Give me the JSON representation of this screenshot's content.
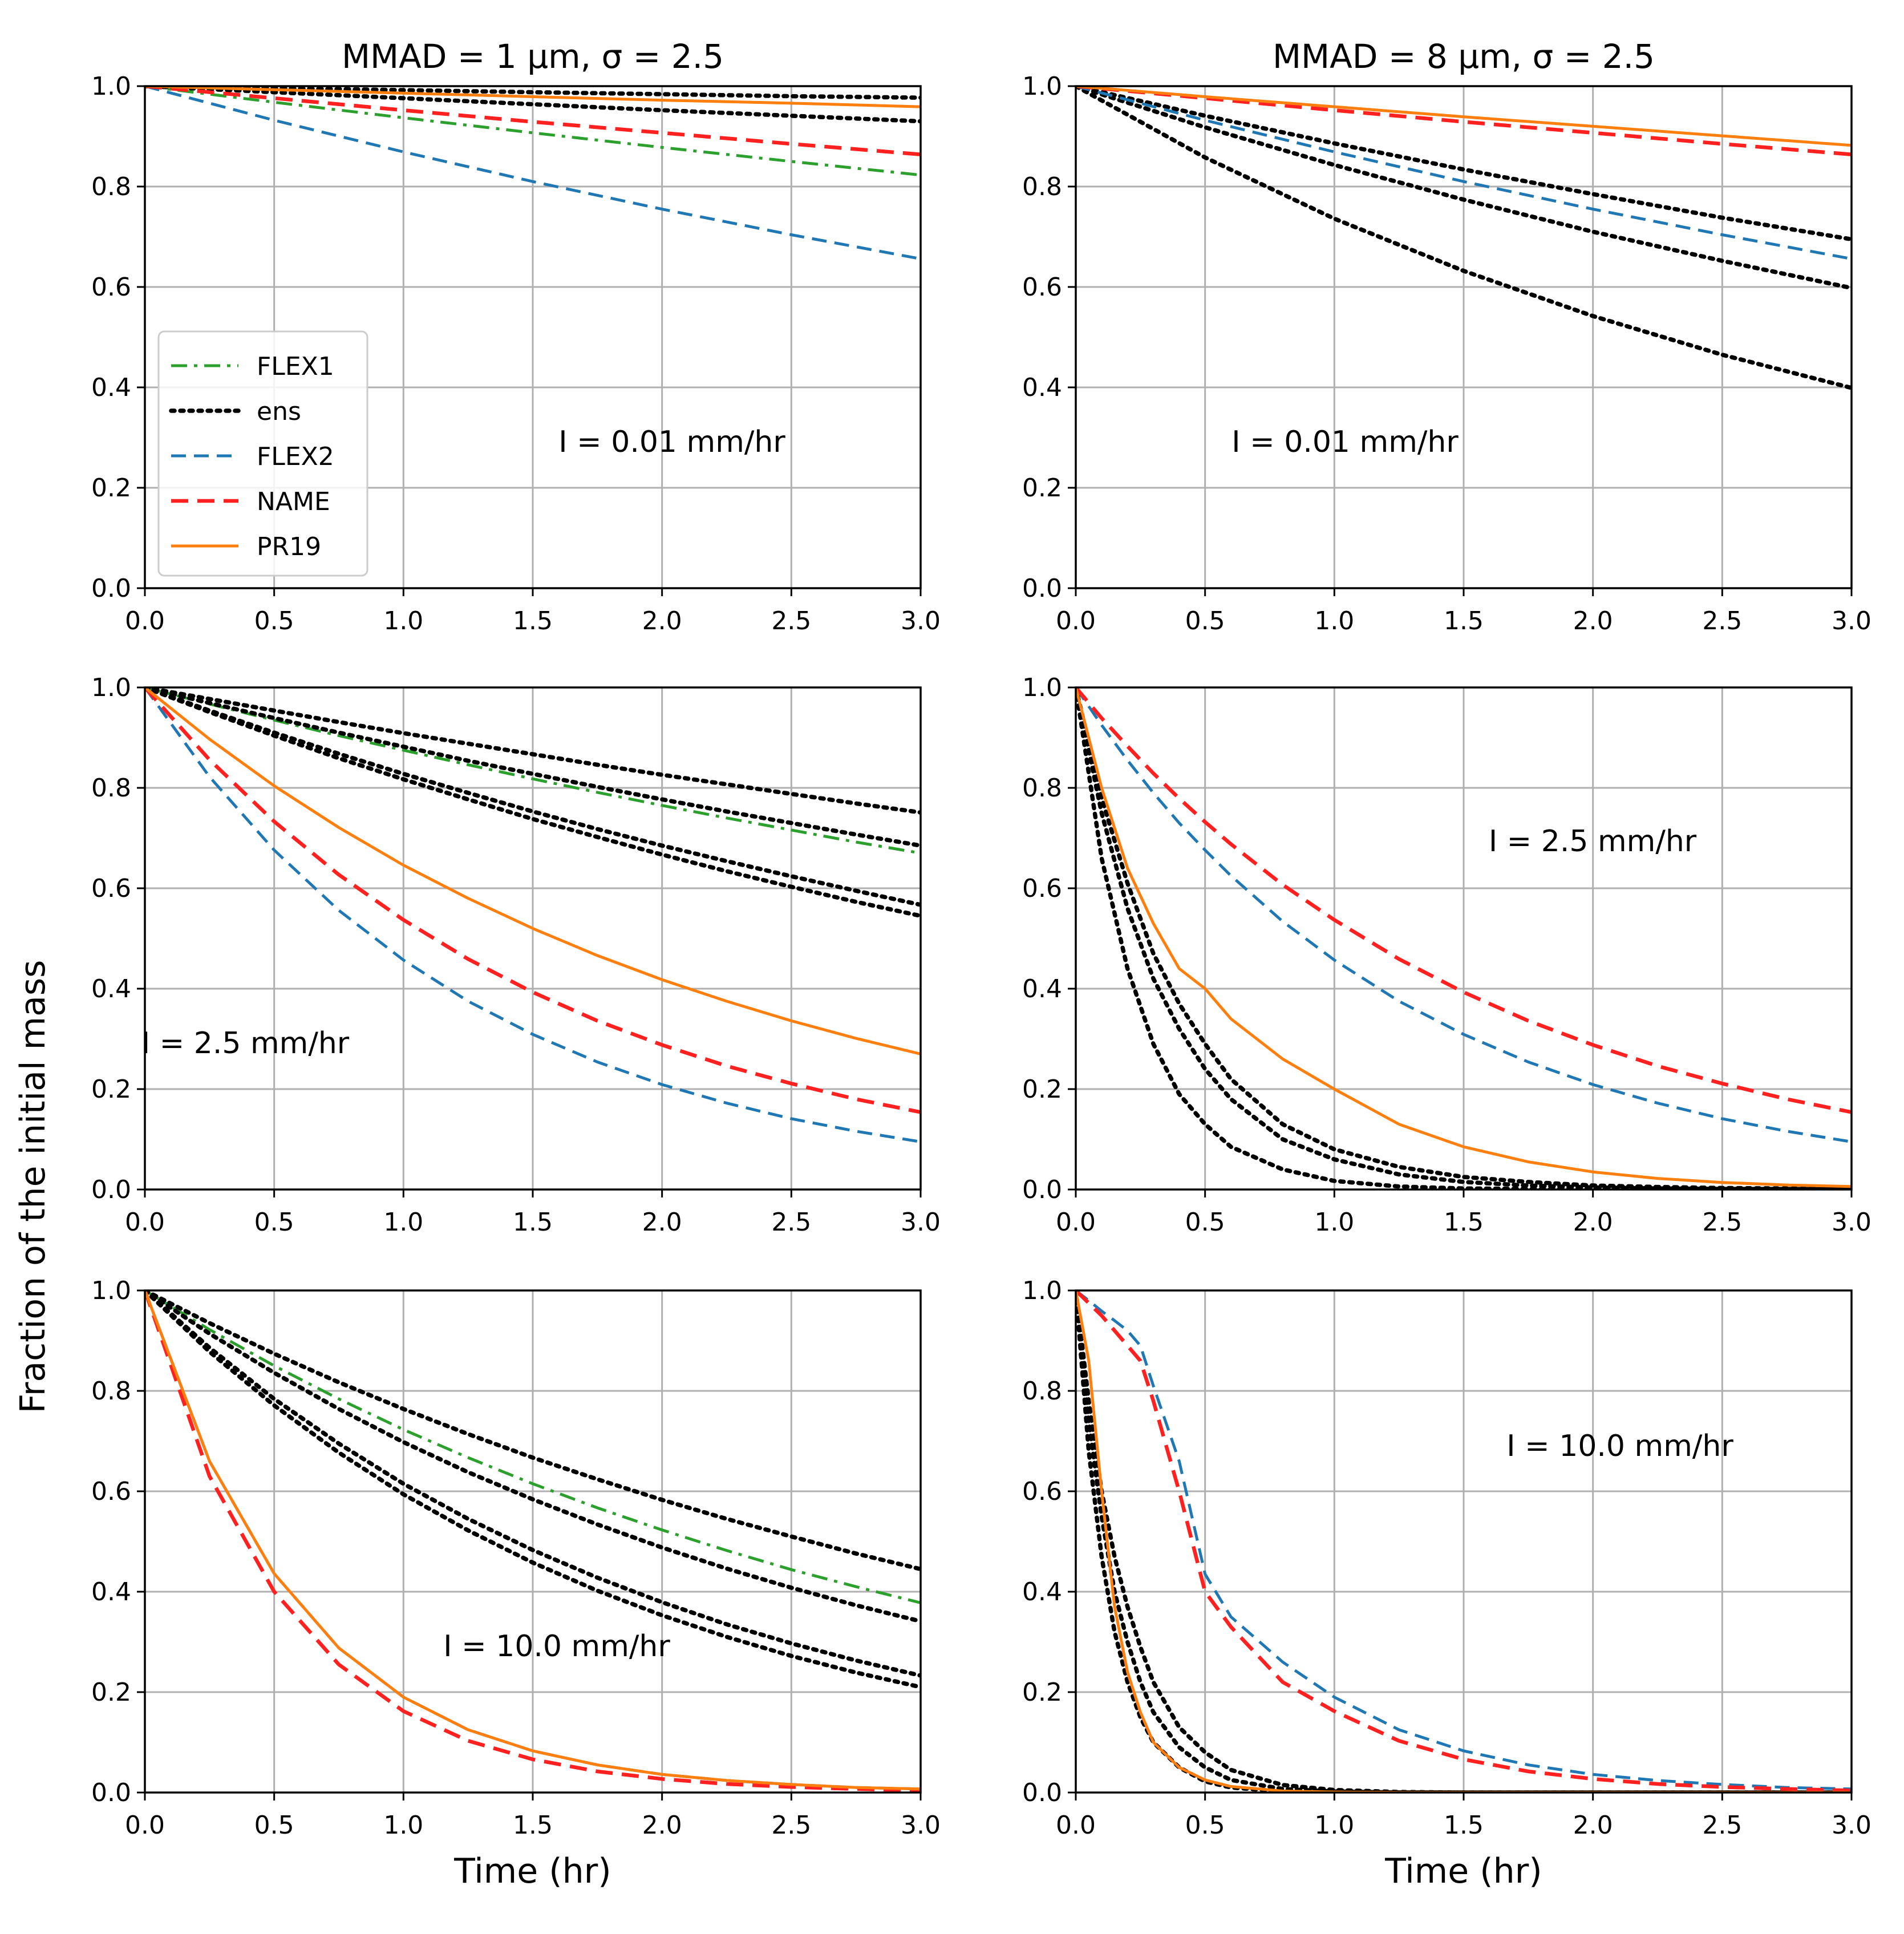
{
  "figure": {
    "ylabel": "Fraction of the initial mass",
    "xlabel": "Time (hr)",
    "column_titles": [
      "MMAD = 1 μm, σ = 2.5",
      "MMAD = 8 μm, σ = 2.5"
    ]
  },
  "styles": {
    "FLEX1": {
      "color": "#2ca02c",
      "dash": "dashdot"
    },
    "ens": {
      "color": "#000000",
      "dash": "dotted"
    },
    "FLEX2": {
      "color": "#1f77b4",
      "dash": "dashed"
    },
    "NAME": {
      "color": "#ff2020",
      "dash": "dashed-thick"
    },
    "PR19": {
      "color": "#ff7f0e",
      "dash": "solid"
    }
  },
  "legend": {
    "location": "center-left",
    "entries": [
      "FLEX1",
      "ens",
      "FLEX2",
      "NAME",
      "PR19"
    ]
  },
  "chart_data": [
    {
      "type": "line",
      "row": 0,
      "col": 0,
      "title": "MMAD = 1 μm, σ = 2.5",
      "annotation": "I = 0.01 mm/hr",
      "xlim": [
        0,
        3
      ],
      "ylim": [
        0,
        1
      ],
      "xticks": [
        "0.0",
        "0.5",
        "1.0",
        "1.5",
        "2.0",
        "2.5",
        "3.0"
      ],
      "yticks": [
        "0.0",
        "0.2",
        "0.4",
        "0.6",
        "0.8",
        "1.0"
      ],
      "grid": true,
      "xlabel": "",
      "ylabel": "",
      "x": [
        0,
        0.5,
        1,
        1.5,
        2,
        2.5,
        3
      ],
      "series": [
        {
          "name": "FLEX1",
          "values": [
            1,
            0.968,
            0.937,
            0.907,
            0.878,
            0.85,
            0.823
          ]
        },
        {
          "name": "ens",
          "values": [
            1,
            0.996,
            0.992,
            0.988,
            0.984,
            0.98,
            0.977
          ]
        },
        {
          "name": "ens",
          "values": [
            1,
            0.988,
            0.976,
            0.964,
            0.952,
            0.941,
            0.93
          ]
        },
        {
          "name": "FLEX2",
          "values": [
            1,
            0.932,
            0.869,
            0.81,
            0.755,
            0.704,
            0.656
          ]
        },
        {
          "name": "NAME",
          "values": [
            1,
            0.976,
            0.952,
            0.929,
            0.907,
            0.885,
            0.864
          ]
        },
        {
          "name": "PR19",
          "values": [
            1,
            0.993,
            0.986,
            0.979,
            0.972,
            0.966,
            0.959
          ]
        }
      ]
    },
    {
      "type": "line",
      "row": 0,
      "col": 1,
      "title": "MMAD = 8 μm, σ = 2.5",
      "annotation": "I = 0.01 mm/hr",
      "xlim": [
        0,
        3
      ],
      "ylim": [
        0,
        1
      ],
      "xticks": [
        "0.0",
        "0.5",
        "1.0",
        "1.5",
        "2.0",
        "2.5",
        "3.0"
      ],
      "yticks": [
        "0.0",
        "0.2",
        "0.4",
        "0.6",
        "0.8",
        "1.0"
      ],
      "grid": true,
      "xlabel": "",
      "ylabel": "",
      "x": [
        0,
        0.5,
        1,
        1.5,
        2,
        2.5,
        3
      ],
      "series": [
        {
          "name": "ens",
          "values": [
            1,
            0.941,
            0.886,
            0.834,
            0.785,
            0.738,
            0.695
          ]
        },
        {
          "name": "ens",
          "values": [
            1,
            0.918,
            0.843,
            0.774,
            0.71,
            0.652,
            0.598
          ]
        },
        {
          "name": "ens",
          "values": [
            1,
            0.858,
            0.736,
            0.632,
            0.542,
            0.465,
            0.399
          ]
        },
        {
          "name": "FLEX2",
          "values": [
            1,
            0.932,
            0.869,
            0.81,
            0.755,
            0.704,
            0.656
          ]
        },
        {
          "name": "NAME",
          "values": [
            1,
            0.976,
            0.952,
            0.929,
            0.907,
            0.885,
            0.864
          ]
        },
        {
          "name": "PR19",
          "values": [
            1,
            0.979,
            0.959,
            0.939,
            0.92,
            0.901,
            0.882
          ]
        }
      ]
    },
    {
      "type": "line",
      "row": 1,
      "col": 0,
      "title": "",
      "annotation": "I = 2.5 mm/hr",
      "xlim": [
        0,
        3
      ],
      "ylim": [
        0,
        1
      ],
      "xticks": [
        "0.0",
        "0.5",
        "1.0",
        "1.5",
        "2.0",
        "2.5",
        "3.0"
      ],
      "yticks": [
        "0.0",
        "0.2",
        "0.4",
        "0.6",
        "0.8",
        "1.0"
      ],
      "grid": true,
      "xlabel": "",
      "ylabel": "Fraction of the initial mass",
      "x": [
        0,
        0.25,
        0.5,
        0.75,
        1,
        1.25,
        1.5,
        1.75,
        2,
        2.25,
        2.5,
        2.75,
        3
      ],
      "series": [
        {
          "name": "FLEX1",
          "values": [
            1,
            0.967,
            0.935,
            0.904,
            0.875,
            0.846,
            0.818,
            0.791,
            0.765,
            0.74,
            0.716,
            0.692,
            0.67
          ]
        },
        {
          "name": "ens",
          "values": [
            1,
            0.977,
            0.954,
            0.931,
            0.909,
            0.888,
            0.867,
            0.846,
            0.826,
            0.807,
            0.788,
            0.769,
            0.751
          ]
        },
        {
          "name": "ens",
          "values": [
            1,
            0.969,
            0.939,
            0.91,
            0.882,
            0.854,
            0.828,
            0.802,
            0.777,
            0.753,
            0.73,
            0.707,
            0.685
          ]
        },
        {
          "name": "ens",
          "values": [
            1,
            0.954,
            0.91,
            0.868,
            0.828,
            0.79,
            0.753,
            0.718,
            0.685,
            0.654,
            0.624,
            0.595,
            0.567
          ]
        },
        {
          "name": "ens",
          "values": [
            1,
            0.951,
            0.904,
            0.859,
            0.817,
            0.777,
            0.738,
            0.702,
            0.667,
            0.634,
            0.603,
            0.573,
            0.545
          ]
        },
        {
          "name": "FLEX2",
          "values": [
            1,
            0.822,
            0.676,
            0.556,
            0.457,
            0.375,
            0.309,
            0.254,
            0.209,
            0.172,
            0.141,
            0.116,
            0.095
          ]
        },
        {
          "name": "NAME",
          "values": [
            1,
            0.856,
            0.733,
            0.627,
            0.537,
            0.459,
            0.393,
            0.336,
            0.288,
            0.246,
            0.211,
            0.18,
            0.154
          ]
        },
        {
          "name": "PR19",
          "values": [
            1,
            0.897,
            0.804,
            0.721,
            0.646,
            0.58,
            0.52,
            0.466,
            0.418,
            0.375,
            0.336,
            0.301,
            0.27
          ]
        }
      ]
    },
    {
      "type": "line",
      "row": 1,
      "col": 1,
      "title": "",
      "annotation": "I = 2.5 mm/hr",
      "xlim": [
        0,
        3
      ],
      "ylim": [
        0,
        1
      ],
      "xticks": [
        "0.0",
        "0.5",
        "1.0",
        "1.5",
        "2.0",
        "2.5",
        "3.0"
      ],
      "yticks": [
        "0.0",
        "0.2",
        "0.4",
        "0.6",
        "0.8",
        "1.0"
      ],
      "grid": true,
      "xlabel": "",
      "ylabel": "",
      "x": [
        0,
        0.1,
        0.2,
        0.3,
        0.4,
        0.5,
        0.6,
        0.8,
        1,
        1.25,
        1.5,
        1.75,
        2,
        2.25,
        2.5,
        2.75,
        3
      ],
      "series": [
        {
          "name": "ens",
          "values": [
            1,
            0.78,
            0.61,
            0.47,
            0.37,
            0.29,
            0.22,
            0.13,
            0.08,
            0.045,
            0.025,
            0.015,
            0.008,
            0.005,
            0.003,
            0.002,
            0.001
          ]
        },
        {
          "name": "ens",
          "values": [
            1,
            0.75,
            0.56,
            0.42,
            0.32,
            0.24,
            0.18,
            0.1,
            0.06,
            0.03,
            0.015,
            0.008,
            0.004,
            0.002,
            0.001,
            0.001,
            0
          ]
        },
        {
          "name": "ens",
          "values": [
            1,
            0.66,
            0.44,
            0.29,
            0.19,
            0.13,
            0.085,
            0.04,
            0.017,
            0.006,
            0.002,
            0.001,
            0,
            0,
            0,
            0,
            0
          ]
        },
        {
          "name": "FLEX2",
          "values": [
            1,
            0.925,
            0.855,
            0.79,
            0.73,
            0.676,
            0.625,
            0.534,
            0.457,
            0.375,
            0.309,
            0.254,
            0.209,
            0.172,
            0.141,
            0.116,
            0.095
          ]
        },
        {
          "name": "NAME",
          "values": [
            1,
            0.939,
            0.883,
            0.829,
            0.779,
            0.732,
            0.688,
            0.607,
            0.537,
            0.459,
            0.393,
            0.336,
            0.288,
            0.246,
            0.211,
            0.18,
            0.154
          ]
        },
        {
          "name": "PR19",
          "values": [
            1,
            0.8,
            0.64,
            0.53,
            0.44,
            0.4,
            0.34,
            0.26,
            0.2,
            0.13,
            0.085,
            0.055,
            0.035,
            0.022,
            0.014,
            0.009,
            0.006
          ]
        }
      ]
    },
    {
      "type": "line",
      "row": 2,
      "col": 0,
      "title": "",
      "annotation": "I = 10.0 mm/hr",
      "xlim": [
        0,
        3
      ],
      "ylim": [
        0,
        1
      ],
      "xticks": [
        "0.0",
        "0.5",
        "1.0",
        "1.5",
        "2.0",
        "2.5",
        "3.0"
      ],
      "yticks": [
        "0.0",
        "0.2",
        "0.4",
        "0.6",
        "0.8",
        "1.0"
      ],
      "grid": true,
      "xlabel": "Time (hr)",
      "ylabel": "",
      "x": [
        0,
        0.25,
        0.5,
        0.75,
        1,
        1.25,
        1.5,
        1.75,
        2,
        2.25,
        2.5,
        2.75,
        3
      ],
      "series": [
        {
          "name": "FLEX1",
          "values": [
            1,
            0.922,
            0.85,
            0.784,
            0.723,
            0.667,
            0.615,
            0.567,
            0.523,
            0.482,
            0.444,
            0.41,
            0.378
          ]
        },
        {
          "name": "ens",
          "values": [
            1,
            0.935,
            0.874,
            0.817,
            0.764,
            0.714,
            0.667,
            0.624,
            0.583,
            0.545,
            0.51,
            0.476,
            0.445
          ]
        },
        {
          "name": "ens",
          "values": [
            1,
            0.914,
            0.836,
            0.764,
            0.698,
            0.638,
            0.584,
            0.534,
            0.488,
            0.446,
            0.408,
            0.373,
            0.341
          ]
        },
        {
          "name": "ens",
          "values": [
            1,
            0.886,
            0.784,
            0.695,
            0.615,
            0.545,
            0.483,
            0.428,
            0.379,
            0.335,
            0.297,
            0.263,
            0.233
          ]
        },
        {
          "name": "ens",
          "values": [
            1,
            0.878,
            0.771,
            0.677,
            0.594,
            0.522,
            0.458,
            0.402,
            0.353,
            0.31,
            0.272,
            0.239,
            0.21
          ]
        },
        {
          "name": "FLEX2",
          "values": [
            1,
            0.66,
            0.436,
            0.288,
            0.19,
            0.125,
            0.083,
            0.055,
            0.036,
            0.024,
            0.016,
            0.01,
            0.007
          ]
        },
        {
          "name": "NAME",
          "values": [
            1,
            0.63,
            0.4,
            0.255,
            0.162,
            0.103,
            0.066,
            0.042,
            0.027,
            0.017,
            0.011,
            0.007,
            0.004
          ]
        },
        {
          "name": "PR19",
          "values": [
            1,
            0.66,
            0.436,
            0.288,
            0.19,
            0.125,
            0.083,
            0.055,
            0.036,
            0.024,
            0.016,
            0.01,
            0.007
          ]
        }
      ]
    },
    {
      "type": "line",
      "row": 2,
      "col": 1,
      "title": "",
      "annotation": "I = 10.0 mm/hr",
      "xlim": [
        0,
        3
      ],
      "ylim": [
        0,
        1
      ],
      "xticks": [
        "0.0",
        "0.5",
        "1.0",
        "1.5",
        "2.0",
        "2.5",
        "3.0"
      ],
      "yticks": [
        "0.0",
        "0.2",
        "0.4",
        "0.6",
        "0.8",
        "1.0"
      ],
      "grid": true,
      "xlabel": "Time (hr)",
      "ylabel": "",
      "x": [
        0,
        0.05,
        0.1,
        0.15,
        0.2,
        0.25,
        0.3,
        0.4,
        0.5,
        0.6,
        0.8,
        1,
        1.25,
        1.5,
        1.75,
        2,
        2.25,
        2.5,
        2.75,
        3
      ],
      "series": [
        {
          "name": "ens",
          "values": [
            1,
            0.78,
            0.6,
            0.47,
            0.37,
            0.29,
            0.22,
            0.13,
            0.08,
            0.045,
            0.015,
            0.005,
            0.001,
            0,
            0,
            0,
            0,
            0,
            0,
            0
          ]
        },
        {
          "name": "ens",
          "values": [
            1,
            0.74,
            0.55,
            0.4,
            0.3,
            0.22,
            0.16,
            0.09,
            0.05,
            0.025,
            0.007,
            0.002,
            0,
            0,
            0,
            0,
            0,
            0,
            0,
            0
          ]
        },
        {
          "name": "ens",
          "values": [
            1,
            0.68,
            0.47,
            0.32,
            0.22,
            0.15,
            0.1,
            0.05,
            0.022,
            0.01,
            0.002,
            0,
            0,
            0,
            0,
            0,
            0,
            0,
            0,
            0
          ]
        },
        {
          "name": "FLEX2",
          "values": [
            1,
            0.98,
            0.959,
            0.94,
            0.92,
            0.89,
            0.81,
            0.66,
            0.435,
            0.35,
            0.26,
            0.19,
            0.125,
            0.083,
            0.055,
            0.036,
            0.024,
            0.016,
            0.01,
            0.007
          ]
        },
        {
          "name": "NAME",
          "values": [
            1,
            0.975,
            0.95,
            0.92,
            0.89,
            0.86,
            0.78,
            0.6,
            0.4,
            0.33,
            0.22,
            0.162,
            0.103,
            0.066,
            0.042,
            0.027,
            0.017,
            0.011,
            0.007,
            0.004
          ]
        },
        {
          "name": "PR19",
          "values": [
            1,
            0.86,
            0.6,
            0.37,
            0.24,
            0.16,
            0.1,
            0.05,
            0.025,
            0.012,
            0.003,
            0.001,
            0,
            0,
            0,
            0,
            0,
            0,
            0,
            0
          ]
        }
      ]
    }
  ]
}
